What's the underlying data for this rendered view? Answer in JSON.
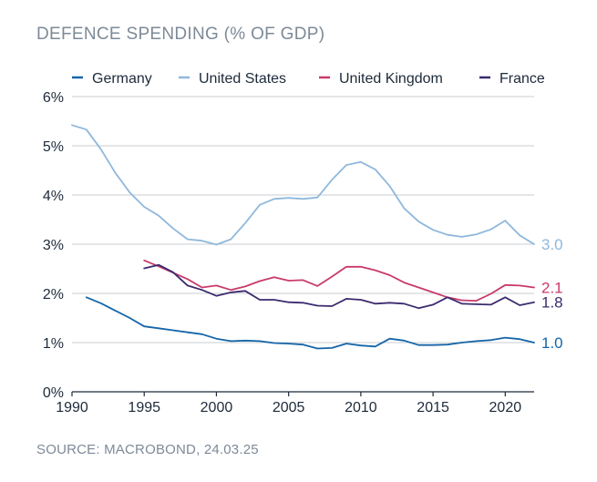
{
  "title": "DEFENCE SPENDING (% OF GDP)",
  "source": "SOURCE: MACROBOND, 24.03.25",
  "chart_data": {
    "type": "line",
    "title": "DEFENCE SPENDING (% OF GDP)",
    "xlabel": "",
    "ylabel": "",
    "xlim": [
      1990,
      2022
    ],
    "ylim": [
      0,
      6
    ],
    "x_ticks": [
      "1990",
      "1995",
      "2000",
      "2005",
      "2010",
      "2015",
      "2020"
    ],
    "y_ticks": [
      "0%",
      "1%",
      "2%",
      "3%",
      "4%",
      "5%",
      "6%"
    ],
    "grid": true,
    "legend": "top",
    "series": [
      {
        "name": "Germany",
        "color": "#1565a8",
        "end_label": "1.0",
        "x": [
          1991,
          1992,
          1993,
          1994,
          1995,
          1996,
          1997,
          1998,
          1999,
          2000,
          2001,
          2002,
          2003,
          2004,
          2005,
          2006,
          2007,
          2008,
          2009,
          2010,
          2011,
          2012,
          2013,
          2014,
          2015,
          2016,
          2017,
          2018,
          2019,
          2020,
          2021,
          2022
        ],
        "values": [
          1.92,
          1.8,
          1.65,
          1.5,
          1.33,
          1.29,
          1.25,
          1.21,
          1.17,
          1.08,
          1.03,
          1.04,
          1.03,
          0.99,
          0.98,
          0.96,
          0.88,
          0.89,
          0.98,
          0.94,
          0.92,
          1.08,
          1.04,
          0.95,
          0.95,
          0.96,
          1.0,
          1.03,
          1.05,
          1.1,
          1.07,
          1.0
        ]
      },
      {
        "name": "United States",
        "color": "#8fb8dc",
        "end_label": "3.0",
        "x": [
          1990,
          1991,
          1992,
          1993,
          1994,
          1995,
          1996,
          1997,
          1998,
          1999,
          2000,
          2001,
          2002,
          2003,
          2004,
          2005,
          2006,
          2007,
          2008,
          2009,
          2010,
          2011,
          2012,
          2013,
          2014,
          2015,
          2016,
          2017,
          2018,
          2019,
          2020,
          2021,
          2022
        ],
        "values": [
          5.42,
          5.33,
          4.93,
          4.45,
          4.05,
          3.76,
          3.58,
          3.32,
          3.1,
          3.07,
          2.99,
          3.1,
          3.43,
          3.8,
          3.92,
          3.94,
          3.92,
          3.95,
          4.31,
          4.61,
          4.67,
          4.52,
          4.18,
          3.73,
          3.46,
          3.29,
          3.19,
          3.15,
          3.2,
          3.3,
          3.48,
          3.18,
          3.0
        ]
      },
      {
        "name": "United Kingdom",
        "color": "#c93a6c",
        "end_label": "2.1",
        "x": [
          1995,
          1996,
          1997,
          1998,
          1999,
          2000,
          2001,
          2002,
          2003,
          2004,
          2005,
          2006,
          2007,
          2008,
          2009,
          2010,
          2011,
          2012,
          2013,
          2014,
          2015,
          2016,
          2017,
          2018,
          2019,
          2020,
          2021,
          2022
        ],
        "values": [
          2.67,
          2.55,
          2.42,
          2.29,
          2.12,
          2.16,
          2.07,
          2.14,
          2.25,
          2.33,
          2.26,
          2.27,
          2.15,
          2.34,
          2.54,
          2.54,
          2.47,
          2.37,
          2.22,
          2.12,
          2.02,
          1.92,
          1.86,
          1.85,
          1.99,
          2.17,
          2.16,
          2.12
        ]
      },
      {
        "name": "France",
        "color": "#3b2b6e",
        "end_label": "1.8",
        "x": [
          1995,
          1996,
          1997,
          1998,
          1999,
          2000,
          2001,
          2002,
          2003,
          2004,
          2005,
          2006,
          2007,
          2008,
          2009,
          2010,
          2011,
          2012,
          2013,
          2014,
          2015,
          2016,
          2017,
          2018,
          2019,
          2020,
          2021,
          2022
        ],
        "values": [
          2.51,
          2.58,
          2.43,
          2.16,
          2.07,
          1.95,
          2.02,
          2.05,
          1.87,
          1.87,
          1.82,
          1.81,
          1.75,
          1.74,
          1.89,
          1.87,
          1.79,
          1.81,
          1.79,
          1.7,
          1.77,
          1.92,
          1.79,
          1.78,
          1.77,
          1.92,
          1.76,
          1.82
        ]
      }
    ]
  }
}
